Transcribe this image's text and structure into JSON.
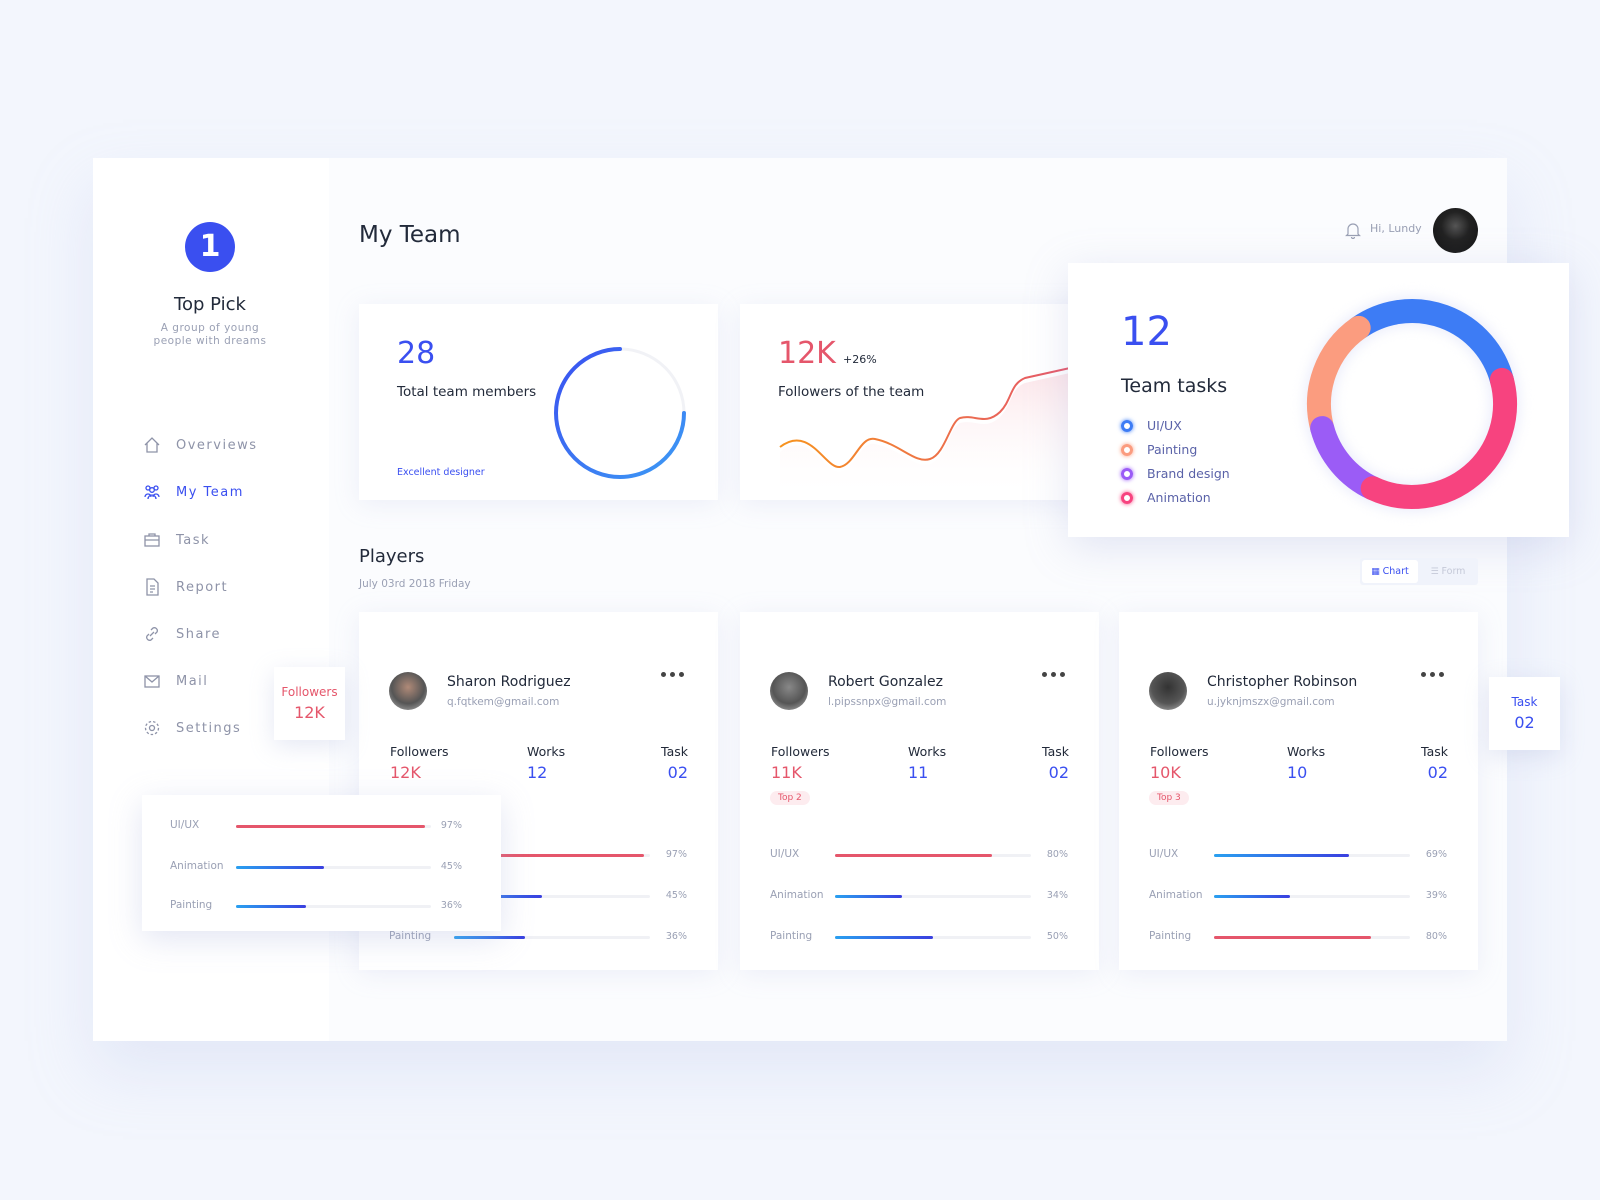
{
  "sidebar": {
    "logo": "1",
    "brand": "Top Pick",
    "tagline": "A group of young people with dreams",
    "nav": [
      "Overviews",
      "My Team",
      "Task",
      "Report",
      "Share",
      "Mail",
      "Settings"
    ],
    "active_index": 1
  },
  "header": {
    "title": "My Team",
    "greeting": "Hi,  Lundy"
  },
  "stats": {
    "members": {
      "value": "28",
      "label": "Total team members",
      "note": "Excellent designer"
    },
    "followers": {
      "value": "12K",
      "change": "+26%",
      "label": "Followers of the team"
    },
    "tasks": {
      "value": "12",
      "label": "Team tasks",
      "legend": [
        {
          "name": "UI/UX",
          "color": "#3d7cf5"
        },
        {
          "name": "Painting",
          "color": "#fb9c7f"
        },
        {
          "name": "Brand design",
          "color": "#9b5cf6"
        },
        {
          "name": "Animation",
          "color": "#f7437f"
        }
      ]
    }
  },
  "players": {
    "title": "Players",
    "date": "July  03rd  2018  Friday",
    "views": [
      "Chart",
      "Form"
    ],
    "stat_labels": [
      "Followers",
      "Works",
      "Task"
    ],
    "cards": [
      {
        "name": "Sharon Rodriguez",
        "email": "q.fqtkem@gmail.com",
        "followers": "12K",
        "works": "12",
        "task": "02",
        "skills": [
          {
            "name": "UI/UX",
            "value": 97,
            "label": "97%",
            "color": "#e5566b"
          },
          {
            "name": "Animation",
            "value": 45,
            "label": "45%",
            "color": "#3a3fe0"
          },
          {
            "name": "Painting",
            "value": 36,
            "label": "36%",
            "color": "#3a3fe0"
          }
        ]
      },
      {
        "name": "Robert Gonzalez",
        "email": "l.pipssnpx@gmail.com",
        "followers": "11K",
        "works": "11",
        "task": "02",
        "rank": "Top 2",
        "skills": [
          {
            "name": "UI/UX",
            "value": 80,
            "label": "80%",
            "color": "#e5566b"
          },
          {
            "name": "Animation",
            "value": 34,
            "label": "34%",
            "color": "#3a3fe0"
          },
          {
            "name": "Painting",
            "value": 50,
            "label": "50%",
            "color": "#3a3fe0"
          }
        ]
      },
      {
        "name": "Christopher Robinson",
        "email": "u.jyknjmszx@gmail.com",
        "followers": "10K",
        "works": "10",
        "task": "02",
        "rank": "Top 3",
        "skills": [
          {
            "name": "UI/UX",
            "value": 69,
            "label": "69%",
            "color": "#3a3fe0"
          },
          {
            "name": "Animation",
            "value": 39,
            "label": "39%",
            "color": "#3a3fe0"
          },
          {
            "name": "Painting",
            "value": 80,
            "label": "80%",
            "color": "#e5566b"
          }
        ]
      }
    ]
  }
}
